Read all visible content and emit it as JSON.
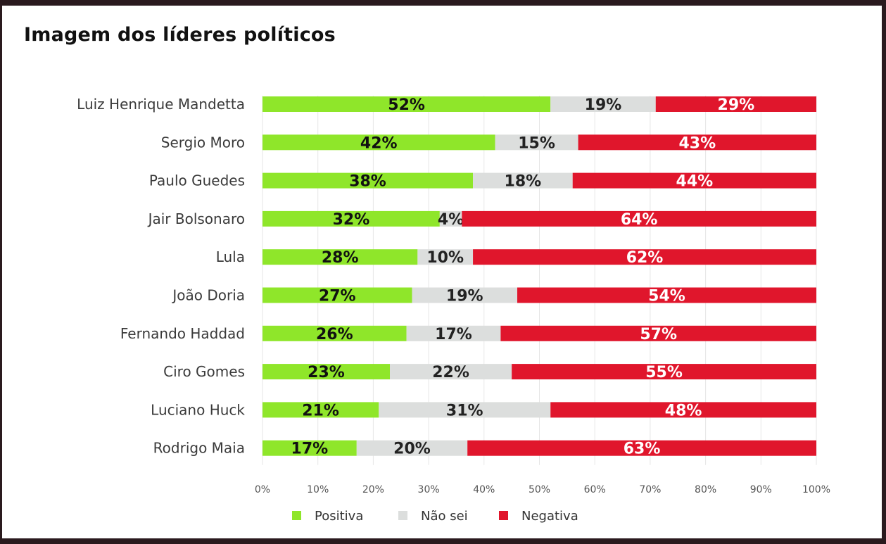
{
  "chart_data": {
    "type": "bar",
    "orientation": "horizontal",
    "stacked": true,
    "title": "Imagem dos líderes políticos",
    "categories": [
      "Luiz Henrique Mandetta",
      "Sergio Moro",
      "Paulo Guedes",
      "Jair Bolsonaro",
      "Lula",
      "João Doria",
      "Fernando Haddad",
      "Ciro Gomes",
      "Luciano Huck",
      "Rodrigo Maia"
    ],
    "series": [
      {
        "name": "Positiva",
        "color": "#8fe62a",
        "label_color": "#111111",
        "values": [
          52,
          42,
          38,
          32,
          28,
          27,
          26,
          23,
          21,
          17
        ]
      },
      {
        "name": "Não sei",
        "color": "#dcdedd",
        "label_color": "#222222",
        "values": [
          19,
          15,
          18,
          4,
          10,
          19,
          17,
          22,
          31,
          20
        ]
      },
      {
        "name": "Negativa",
        "color": "#e0162c",
        "label_color": "#ffffff",
        "values": [
          29,
          43,
          44,
          64,
          62,
          54,
          57,
          55,
          48,
          63
        ]
      }
    ],
    "value_suffix": "%",
    "xlim": [
      0,
      100
    ],
    "xticks": [
      "0%",
      "10%",
      "20%",
      "30%",
      "40%",
      "50%",
      "60%",
      "70%",
      "80%",
      "90%",
      "100%"
    ],
    "gridlines": "vertical",
    "legend_position": "bottom"
  }
}
